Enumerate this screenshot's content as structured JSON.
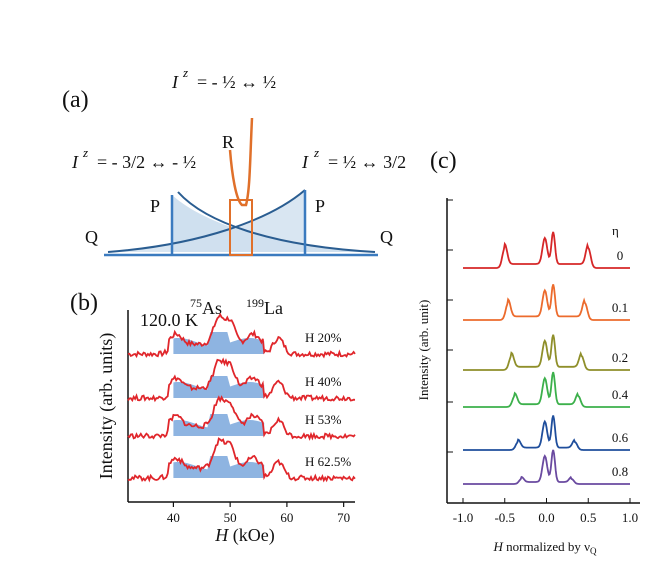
{
  "panel_a": {
    "label": "(a)",
    "transition_top": {
      "sym": "I",
      "sup": "z",
      "text": "= - ½ ↔ ½"
    },
    "transition_left": {
      "sym": "I",
      "sup": "z",
      "text": "= - 3/2 ↔ - ½"
    },
    "transition_right": {
      "sym": "I",
      "sup": "z",
      "text": "= ½ ↔ 3/2"
    },
    "peak_R": "R",
    "peak_P_left": "P",
    "peak_P_right": "P",
    "peak_Q_left": "Q",
    "peak_Q_right": "Q",
    "colors": {
      "blue": "#2a5d91",
      "blue_fill": "#cfe0ef",
      "orange": "#e0702a"
    }
  },
  "chart_data": [
    {
      "id": "b",
      "type": "line",
      "panel_label": "(b)",
      "temperature": "120.0 K",
      "isotope_as": "75As",
      "isotope_la": "199La",
      "xlabel_italic": "H",
      "xlabel_rest": " (kOe)",
      "ylabel": "Intensity (arb. units)",
      "xlim": [
        32,
        72
      ],
      "xticks": [
        40,
        50,
        60,
        70
      ],
      "series": [
        {
          "name": "H 20%",
          "offset": 3,
          "color": "#e0262b",
          "fill": "#7aa7dc"
        },
        {
          "name": "H 40%",
          "offset": 2,
          "color": "#e0262b",
          "fill": "#7aa7dc"
        },
        {
          "name": "H 53%",
          "offset": 1,
          "color": "#e0262b",
          "fill": "#7aa7dc"
        },
        {
          "name": "H 62.5%",
          "offset": 0,
          "color": "#e0262b",
          "fill": "#7aa7dc"
        }
      ]
    },
    {
      "id": "c",
      "type": "line",
      "panel_label": "(c)",
      "xlabel_italic": "H",
      "xlabel_rest": " normalized by ν",
      "xlabel_sub": "Q",
      "ylabel": "Intensity (arb. unit)",
      "xlim": [
        -1.0,
        1.0
      ],
      "xticks": [
        "-1.0",
        "-0.5",
        "0.0",
        "0.5",
        "1.0"
      ],
      "legend_title": "η",
      "series": [
        {
          "eta": "0",
          "color": "#d62728"
        },
        {
          "eta": "0.1",
          "color": "#ec6b2d"
        },
        {
          "eta": "0.2",
          "color": "#8f8f2a"
        },
        {
          "eta": "0.4",
          "color": "#3cb04b"
        },
        {
          "eta": "0.6",
          "color": "#1f4e9c"
        },
        {
          "eta": "0.8",
          "color": "#6a4aa0"
        }
      ]
    }
  ]
}
